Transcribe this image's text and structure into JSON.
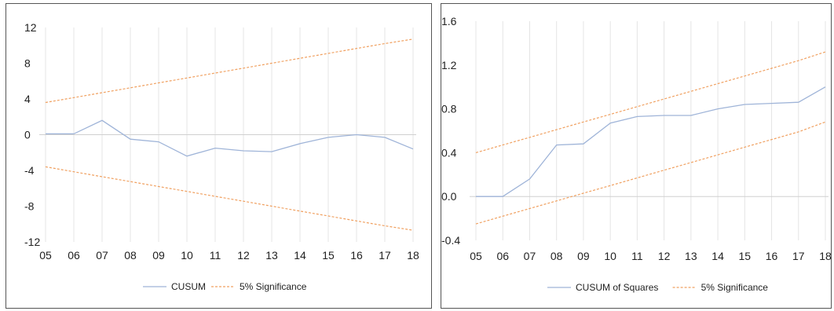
{
  "colors": {
    "cusum": "#9fb4d8",
    "significance": "#f0a060",
    "grid": "#e4e4e4",
    "zero_line": "#d0d0d0"
  },
  "chart_data": [
    {
      "type": "line",
      "categories": [
        "05",
        "06",
        "07",
        "08",
        "09",
        "10",
        "11",
        "12",
        "13",
        "14",
        "15",
        "16",
        "17",
        "18"
      ],
      "yticks": [
        "12",
        "8",
        "4",
        "0",
        "-4",
        "-8",
        "-12"
      ],
      "ylim": [
        -12,
        12
      ],
      "grid": true,
      "legend_position": "bottom",
      "series": [
        {
          "name": "CUSUM",
          "style": "solid",
          "values": [
            0.1,
            0.1,
            1.6,
            -0.5,
            -0.8,
            -2.4,
            -1.5,
            -1.8,
            -1.9,
            -1.0,
            -0.3,
            0.0,
            -0.3,
            -1.6
          ]
        },
        {
          "name": "5% Significance",
          "style": "dashed",
          "legend": true,
          "values": [
            3.6,
            4.15,
            4.7,
            5.25,
            5.8,
            6.35,
            6.9,
            7.45,
            8.0,
            8.55,
            9.1,
            9.65,
            10.2,
            10.7
          ]
        },
        {
          "name": "",
          "style": "dashed",
          "legend": false,
          "values": [
            -3.6,
            -4.15,
            -4.7,
            -5.25,
            -5.8,
            -6.35,
            -6.9,
            -7.45,
            -8.0,
            -8.55,
            -9.1,
            -9.65,
            -10.2,
            -10.7
          ]
        }
      ]
    },
    {
      "type": "line",
      "categories": [
        "05",
        "06",
        "07",
        "08",
        "09",
        "10",
        "11",
        "12",
        "13",
        "14",
        "15",
        "16",
        "17",
        "18"
      ],
      "yticks": [
        "1.6",
        "1.2",
        "0.8",
        "0.4",
        "0.0",
        "-0.4"
      ],
      "ylim": [
        -0.4,
        1.6
      ],
      "grid": true,
      "legend_position": "bottom",
      "series": [
        {
          "name": "CUSUM of Squares",
          "style": "solid",
          "values": [
            0.0,
            0.0,
            0.16,
            0.47,
            0.48,
            0.67,
            0.73,
            0.74,
            0.74,
            0.8,
            0.84,
            0.85,
            0.86,
            1.0
          ]
        },
        {
          "name": "5% Significance",
          "style": "dashed",
          "legend": true,
          "values": [
            0.4,
            0.47,
            0.54,
            0.61,
            0.68,
            0.75,
            0.82,
            0.89,
            0.96,
            1.03,
            1.1,
            1.17,
            1.24,
            1.32
          ]
        },
        {
          "name": "",
          "style": "dashed",
          "legend": false,
          "values": [
            -0.25,
            -0.18,
            -0.11,
            -0.04,
            0.03,
            0.1,
            0.17,
            0.24,
            0.31,
            0.38,
            0.45,
            0.52,
            0.59,
            0.68
          ]
        }
      ]
    }
  ]
}
